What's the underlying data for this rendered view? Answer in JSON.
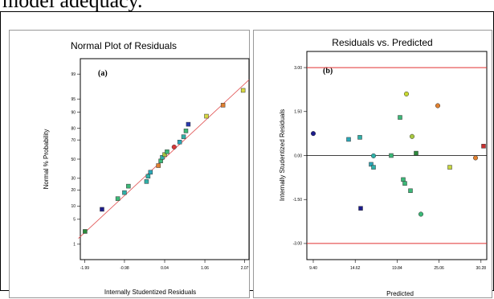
{
  "page": {
    "cut_text": "model adequacy."
  },
  "chart_data": [
    {
      "type": "scatter",
      "title": "Normal Plot of Residuals",
      "panel_label": "(a)",
      "xlabel": "Internally Studentized Residuals",
      "ylabel": "Normal % Probability",
      "x_ticks": [
        "-1.99",
        "-0.98",
        "0.04",
        "1.06",
        "2.07"
      ],
      "x_tick_values": [
        -1.99,
        -0.98,
        0.04,
        1.06,
        2.07
      ],
      "xlim": [
        -2.1,
        2.18
      ],
      "y_ticks": [
        "1",
        "5",
        "10",
        "20",
        "30",
        "50",
        "70",
        "80",
        "90",
        "95",
        "99"
      ],
      "y_tick_values": [
        1,
        5,
        10,
        20,
        30,
        50,
        70,
        80,
        90,
        95,
        99
      ],
      "ylim": [
        0.3,
        99.7
      ],
      "y_scale": "normal-probability",
      "reference_line": {
        "x": [
          -2.15,
          2.18
        ],
        "y": [
          1.5,
          98.5
        ],
        "color": "#e05050"
      },
      "points": [
        {
          "x": -1.98,
          "y": 2.4,
          "shape": "square",
          "color": "#2c8a3c"
        },
        {
          "x": -1.55,
          "y": 8.5,
          "shape": "square",
          "color": "#1c1c8c"
        },
        {
          "x": -1.15,
          "y": 14,
          "shape": "square",
          "color": "#3cb878"
        },
        {
          "x": -0.98,
          "y": 18,
          "shape": "square",
          "color": "#30b0a8"
        },
        {
          "x": -0.88,
          "y": 23,
          "shape": "square",
          "color": "#3cb878"
        },
        {
          "x": -0.42,
          "y": 27,
          "shape": "square",
          "color": "#30b0a8"
        },
        {
          "x": -0.38,
          "y": 32,
          "shape": "square",
          "color": "#30b0a8"
        },
        {
          "x": -0.32,
          "y": 36,
          "shape": "square",
          "color": "#2aa8b8"
        },
        {
          "x": -0.12,
          "y": 43,
          "shape": "square",
          "color": "#e08030"
        },
        {
          "x": -0.06,
          "y": 48,
          "shape": "square",
          "color": "#3cb878"
        },
        {
          "x": -0.02,
          "y": 52,
          "shape": "square",
          "color": "#30b0a8"
        },
        {
          "x": 0.04,
          "y": 55,
          "shape": "square",
          "color": "#a8c840"
        },
        {
          "x": 0.1,
          "y": 58,
          "shape": "square",
          "color": "#3cb878"
        },
        {
          "x": 0.28,
          "y": 63,
          "shape": "circle",
          "color": "#d83838"
        },
        {
          "x": 0.42,
          "y": 68,
          "shape": "square",
          "color": "#2aa8b8"
        },
        {
          "x": 0.52,
          "y": 73,
          "shape": "square",
          "color": "#30b0a8"
        },
        {
          "x": 0.58,
          "y": 78,
          "shape": "square",
          "color": "#3cb878"
        },
        {
          "x": 0.64,
          "y": 83,
          "shape": "square",
          "color": "#2838b0"
        },
        {
          "x": 1.1,
          "y": 88,
          "shape": "square",
          "color": "#d8d840"
        },
        {
          "x": 1.52,
          "y": 93,
          "shape": "square",
          "color": "#e08030"
        },
        {
          "x": 2.03,
          "y": 97,
          "shape": "square",
          "color": "#d8d840"
        }
      ]
    },
    {
      "type": "scatter",
      "title": "Residuals vs. Predicted",
      "panel_label": "(b)",
      "xlabel": "Predicted",
      "ylabel": "Internally Studentized Residuals",
      "x_ticks": [
        "9.40",
        "14.62",
        "19.84",
        "25.06",
        "30.28"
      ],
      "x_tick_values": [
        9.4,
        14.62,
        19.84,
        25.06,
        30.28
      ],
      "xlim": [
        8.6,
        31.0
      ],
      "y_ticks": [
        "3.00",
        "1.50",
        "0.00",
        "-1.50",
        "-3.00"
      ],
      "y_tick_values": [
        3.0,
        1.5,
        0.0,
        -1.5,
        -3.0
      ],
      "ylim": [
        -3.55,
        3.55
      ],
      "limit_lines": [
        3.0,
        -3.0
      ],
      "limit_color": "#e03030",
      "zero_line": 0.0,
      "points": [
        {
          "x": 9.4,
          "y": 0.75,
          "shape": "circle",
          "color": "#1c1c8c"
        },
        {
          "x": 13.8,
          "y": 0.55,
          "shape": "square",
          "color": "#2aa8b8"
        },
        {
          "x": 15.2,
          "y": 0.62,
          "shape": "square",
          "color": "#30b0a8"
        },
        {
          "x": 15.3,
          "y": -1.8,
          "shape": "square",
          "color": "#1c1c8c"
        },
        {
          "x": 16.6,
          "y": -0.3,
          "shape": "square",
          "color": "#2aa8b8"
        },
        {
          "x": 16.9,
          "y": -0.4,
          "shape": "square",
          "color": "#30b0a8"
        },
        {
          "x": 16.9,
          "y": -0.01,
          "shape": "circle",
          "color": "#30b0a8"
        },
        {
          "x": 19.1,
          "y": 0.0,
          "shape": "square",
          "color": "#3cb878"
        },
        {
          "x": 20.2,
          "y": 1.3,
          "shape": "square",
          "color": "#3cb878"
        },
        {
          "x": 20.6,
          "y": -0.82,
          "shape": "square",
          "color": "#3cb878"
        },
        {
          "x": 20.8,
          "y": -0.95,
          "shape": "square",
          "color": "#3cb878"
        },
        {
          "x": 21.0,
          "y": 2.1,
          "shape": "circle",
          "color": "#c8d830"
        },
        {
          "x": 21.5,
          "y": -1.2,
          "shape": "square",
          "color": "#3cb878"
        },
        {
          "x": 21.7,
          "y": 0.65,
          "shape": "circle",
          "color": "#a8c840"
        },
        {
          "x": 22.2,
          "y": 0.08,
          "shape": "square",
          "color": "#2c8a3c"
        },
        {
          "x": 22.8,
          "y": -2.0,
          "shape": "circle",
          "color": "#3cb878"
        },
        {
          "x": 24.9,
          "y": 1.7,
          "shape": "circle",
          "color": "#e08030"
        },
        {
          "x": 26.4,
          "y": -0.4,
          "shape": "square",
          "color": "#c8d840"
        },
        {
          "x": 29.6,
          "y": -0.08,
          "shape": "circle",
          "color": "#e08030"
        },
        {
          "x": 30.6,
          "y": 0.32,
          "shape": "square",
          "color": "#c83030"
        }
      ]
    }
  ]
}
